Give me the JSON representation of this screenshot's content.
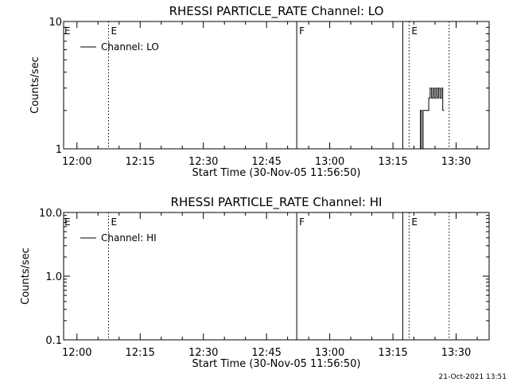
{
  "footer": {
    "timestamp": "21-Oct-2021 13:51"
  },
  "colors": {
    "background": "#ffffff",
    "ink": "#000000"
  },
  "chart_data": [
    {
      "type": "line",
      "title": "RHESSI PARTICLE_RATE Channel: LO",
      "xlabel": "Start Time (30-Nov-05 11:56:50)",
      "ylabel": "Counts/sec",
      "y_scale": "log",
      "xlim": [
        "11:56:50",
        "13:37:50"
      ],
      "ylim": [
        1,
        10
      ],
      "y_ticks": [
        "1",
        "10"
      ],
      "x_ticks": [
        "12:00",
        "12:15",
        "12:30",
        "12:45",
        "13:00",
        "13:15",
        "13:30"
      ],
      "grid": false,
      "legend": {
        "position": "top-left",
        "entries": [
          "Channel: LO"
        ]
      },
      "markers": [
        {
          "time": "12:07:30",
          "style": "dotted",
          "label": "E"
        },
        {
          "time": "12:52:10",
          "style": "solid",
          "label": "F"
        },
        {
          "time": "13:17:20",
          "style": "solid",
          "label": ""
        },
        {
          "time": "13:18:50",
          "style": "dotted",
          "label": "E"
        },
        {
          "time": "13:28:20",
          "style": "dotted",
          "label": ""
        }
      ],
      "edge_labels": [
        {
          "time": "11:56:50",
          "label": "E"
        }
      ],
      "series": [
        {
          "name": "Channel: LO",
          "x": [
            "13:21:10",
            "13:21:30",
            "13:21:30",
            "13:21:50",
            "13:21:50",
            "13:22:10",
            "13:22:10",
            "13:22:30",
            "13:22:30",
            "13:22:50",
            "13:22:50",
            "13:23:10",
            "13:23:10",
            "13:23:30",
            "13:23:30",
            "13:23:50",
            "13:23:50",
            "13:24:10",
            "13:24:10",
            "13:24:30",
            "13:24:30",
            "13:24:50",
            "13:24:50",
            "13:25:10",
            "13:25:10",
            "13:25:30",
            "13:25:30",
            "13:25:50",
            "13:25:50",
            "13:26:10",
            "13:26:10",
            "13:26:30",
            "13:26:30",
            "13:26:50",
            "13:26:50",
            "13:27:10"
          ],
          "y": [
            1,
            1,
            2,
            2,
            1,
            1,
            2,
            2,
            2,
            2,
            2,
            2,
            2,
            2,
            2.5,
            2.5,
            3,
            3,
            2.5,
            2.5,
            3,
            3,
            2.5,
            2.5,
            3,
            3,
            2.5,
            2.5,
            3,
            3,
            2.5,
            2.5,
            3,
            3,
            2,
            2
          ]
        }
      ]
    },
    {
      "type": "line",
      "title": "RHESSI PARTICLE_RATE Channel: HI",
      "xlabel": "Start Time (30-Nov-05 11:56:50)",
      "ylabel": "Counts/sec",
      "y_scale": "log",
      "xlim": [
        "11:56:50",
        "13:37:50"
      ],
      "ylim": [
        0.1,
        10
      ],
      "y_ticks": [
        "0.1",
        "1.0",
        "10.0"
      ],
      "x_ticks": [
        "12:00",
        "12:15",
        "12:30",
        "12:45",
        "13:00",
        "13:15",
        "13:30"
      ],
      "grid": false,
      "legend": {
        "position": "top-left",
        "entries": [
          "Channel: HI"
        ]
      },
      "markers": [
        {
          "time": "12:07:30",
          "style": "dotted",
          "label": "E"
        },
        {
          "time": "12:52:10",
          "style": "solid",
          "label": "F"
        },
        {
          "time": "13:17:20",
          "style": "solid",
          "label": ""
        },
        {
          "time": "13:18:50",
          "style": "dotted",
          "label": "E"
        },
        {
          "time": "13:28:20",
          "style": "dotted",
          "label": ""
        }
      ],
      "edge_labels": [
        {
          "time": "11:56:50",
          "label": "E"
        }
      ],
      "series": [
        {
          "name": "Channel: HI",
          "x": [],
          "y": []
        }
      ]
    }
  ]
}
